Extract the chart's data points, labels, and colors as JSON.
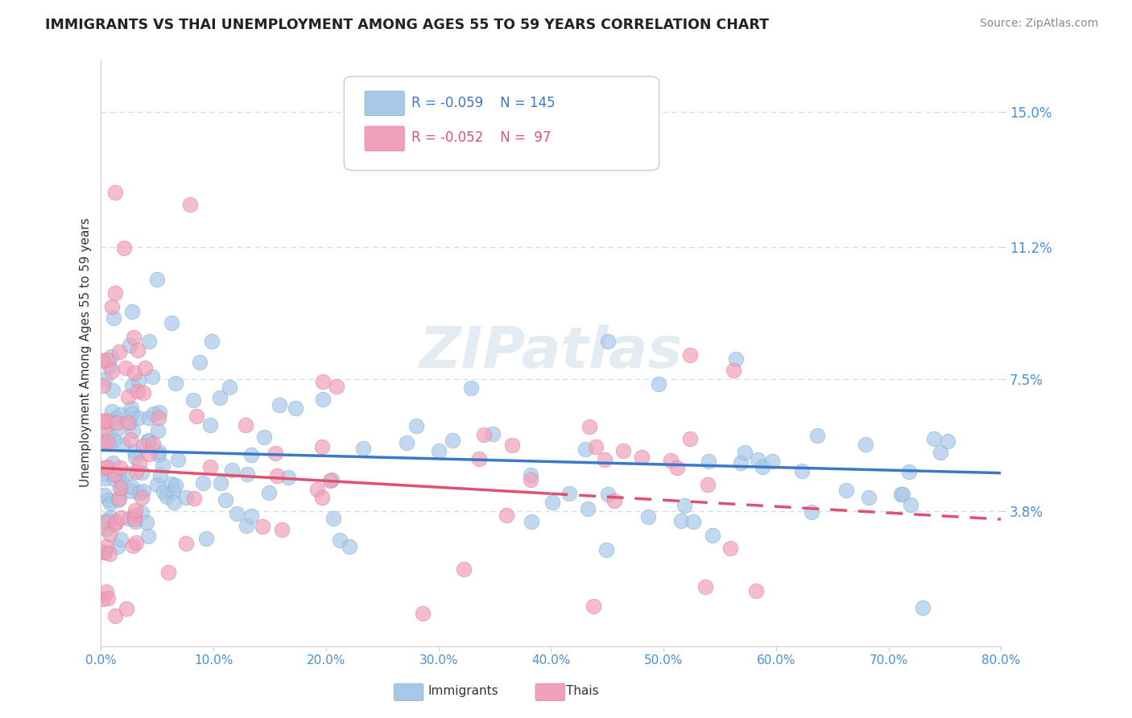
{
  "title": "IMMIGRANTS VS THAI UNEMPLOYMENT AMONG AGES 55 TO 59 YEARS CORRELATION CHART",
  "source": "Source: ZipAtlas.com",
  "ylabel": "Unemployment Among Ages 55 to 59 years",
  "xlim": [
    0.0,
    80.0
  ],
  "ylim": [
    0.0,
    16.5
  ],
  "yticks": [
    3.8,
    7.5,
    11.2,
    15.0
  ],
  "xticks": [
    0.0,
    10.0,
    20.0,
    30.0,
    40.0,
    50.0,
    60.0,
    70.0,
    80.0
  ],
  "blue_fill": "#A8C8E8",
  "blue_edge": "#7BADD4",
  "pink_fill": "#F0A0B8",
  "pink_edge": "#E07898",
  "blue_line_color": "#3A78C9",
  "pink_line_color": "#E05070",
  "legend_blue_R": "R = -0.059",
  "legend_blue_N": "N = 145",
  "legend_pink_R": "R = -0.052",
  "legend_pink_N": "N =  97",
  "title_color": "#222222",
  "ylabel_color": "#333333",
  "tick_label_color": "#4A90D9",
  "background_color": "#ffffff",
  "grid_color": "#C8DDF0",
  "watermark": "ZIPatlas"
}
